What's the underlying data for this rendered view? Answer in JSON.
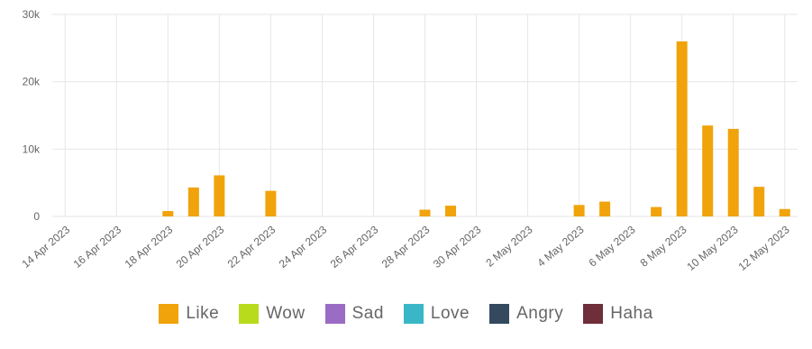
{
  "chart_data": {
    "type": "bar",
    "stacked": true,
    "x_tick_labels": [
      "14 Apr 2023",
      "16 Apr 2023",
      "18 Apr 2023",
      "20 Apr 2023",
      "22 Apr 2023",
      "24 Apr 2023",
      "26 Apr 2023",
      "28 Apr 2023",
      "30 Apr 2023",
      "2 May 2023",
      "4 May 2023",
      "6 May 2023",
      "8 May 2023",
      "10 May 2023",
      "12 May 2023"
    ],
    "dates": [
      "2023-04-14",
      "2023-04-15",
      "2023-04-16",
      "2023-04-17",
      "2023-04-18",
      "2023-04-19",
      "2023-04-20",
      "2023-04-21",
      "2023-04-22",
      "2023-04-23",
      "2023-04-24",
      "2023-04-25",
      "2023-04-26",
      "2023-04-27",
      "2023-04-28",
      "2023-04-29",
      "2023-04-30",
      "2023-05-01",
      "2023-05-02",
      "2023-05-03",
      "2023-05-04",
      "2023-05-05",
      "2023-05-06",
      "2023-05-07",
      "2023-05-08",
      "2023-05-09",
      "2023-05-10",
      "2023-05-11",
      "2023-05-12"
    ],
    "y_tick_labels": [
      "0",
      "10k",
      "20k",
      "30k"
    ],
    "ylim": [
      0,
      30000
    ],
    "grid": true,
    "legend_position": "bottom",
    "series": [
      {
        "name": "Like",
        "color": "#F0A30A",
        "values": [
          0,
          0,
          0,
          0,
          800,
          4300,
          6100,
          0,
          3800,
          0,
          0,
          0,
          0,
          0,
          1000,
          1600,
          0,
          0,
          0,
          0,
          1700,
          2200,
          0,
          1400,
          26000,
          13500,
          13000,
          4400,
          1100
        ]
      },
      {
        "name": "Wow",
        "color": "#B8DC1C",
        "values": [
          0,
          0,
          0,
          0,
          0,
          0,
          0,
          0,
          0,
          0,
          0,
          0,
          0,
          0,
          0,
          0,
          0,
          0,
          0,
          0,
          0,
          0,
          0,
          0,
          0,
          0,
          0,
          0,
          0
        ]
      },
      {
        "name": "Sad",
        "color": "#9B6CC4",
        "values": [
          0,
          0,
          0,
          0,
          0,
          0,
          0,
          0,
          0,
          0,
          0,
          0,
          0,
          0,
          0,
          0,
          0,
          0,
          0,
          0,
          0,
          0,
          0,
          0,
          0,
          0,
          0,
          0,
          0
        ]
      },
      {
        "name": "Love",
        "color": "#3AB7C7",
        "values": [
          0,
          0,
          0,
          0,
          0,
          0,
          0,
          0,
          0,
          0,
          0,
          0,
          0,
          0,
          0,
          0,
          0,
          0,
          0,
          0,
          0,
          0,
          0,
          0,
          0,
          0,
          0,
          0,
          0
        ]
      },
      {
        "name": "Angry",
        "color": "#34495E",
        "values": [
          0,
          0,
          0,
          0,
          0,
          0,
          0,
          0,
          0,
          0,
          0,
          0,
          0,
          0,
          0,
          0,
          0,
          0,
          0,
          0,
          0,
          0,
          0,
          0,
          0,
          0,
          0,
          0,
          0
        ]
      },
      {
        "name": "Haha",
        "color": "#6E2E3A",
        "values": [
          0,
          0,
          0,
          0,
          0,
          0,
          0,
          0,
          0,
          0,
          0,
          0,
          0,
          0,
          0,
          0,
          0,
          0,
          0,
          0,
          0,
          0,
          0,
          0,
          0,
          0,
          0,
          0,
          0
        ]
      }
    ]
  }
}
